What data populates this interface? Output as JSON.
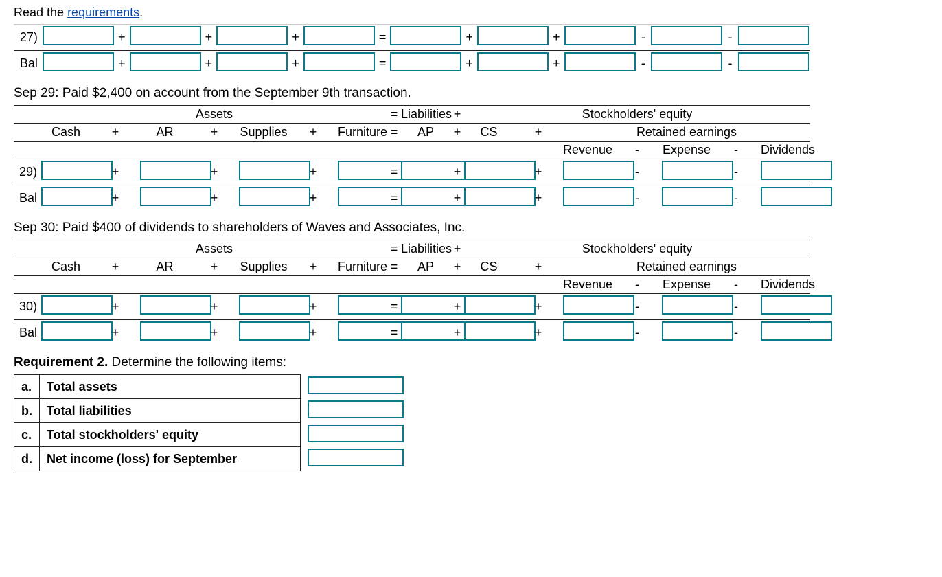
{
  "intro_prefix": "Read the ",
  "intro_link": "requirements",
  "intro_suffix": ".",
  "headers": {
    "assets": "Assets",
    "liabilities": "Liabilities",
    "stockholders_equity": "Stockholders' equity",
    "retained_earnings": "Retained earnings",
    "cash": "Cash",
    "ar": "AR",
    "supplies": "Supplies",
    "furniture": "Furniture",
    "ap": "AP",
    "cs": "CS",
    "revenue": "Revenue",
    "expense": "Expense",
    "dividends": "Dividends"
  },
  "rows": {
    "r27": "27)",
    "bal": "Bal",
    "r29": "29)",
    "r30": "30)"
  },
  "transactions": {
    "sep29": "Sep 29: Paid $2,400 on account from the September 9th transaction.",
    "sep30": "Sep 30: Paid $400 of dividends to shareholders of Waves and Associates, Inc."
  },
  "req2": {
    "title_bold": "Requirement 2.",
    "title_rest": " Determine the following items:",
    "items": [
      {
        "letter": "a.",
        "text": "Total assets"
      },
      {
        "letter": "b.",
        "text": "Total liabilities"
      },
      {
        "letter": "c.",
        "text": "Total stockholders' equity"
      },
      {
        "letter": "d.",
        "text": "Net income (loss) for September"
      }
    ]
  },
  "ops": {
    "plus": "+",
    "minus": "-",
    "equals": "="
  },
  "colors": {
    "input_border": "#0b7a8b",
    "link": "#0645ad",
    "border": "#222222"
  }
}
